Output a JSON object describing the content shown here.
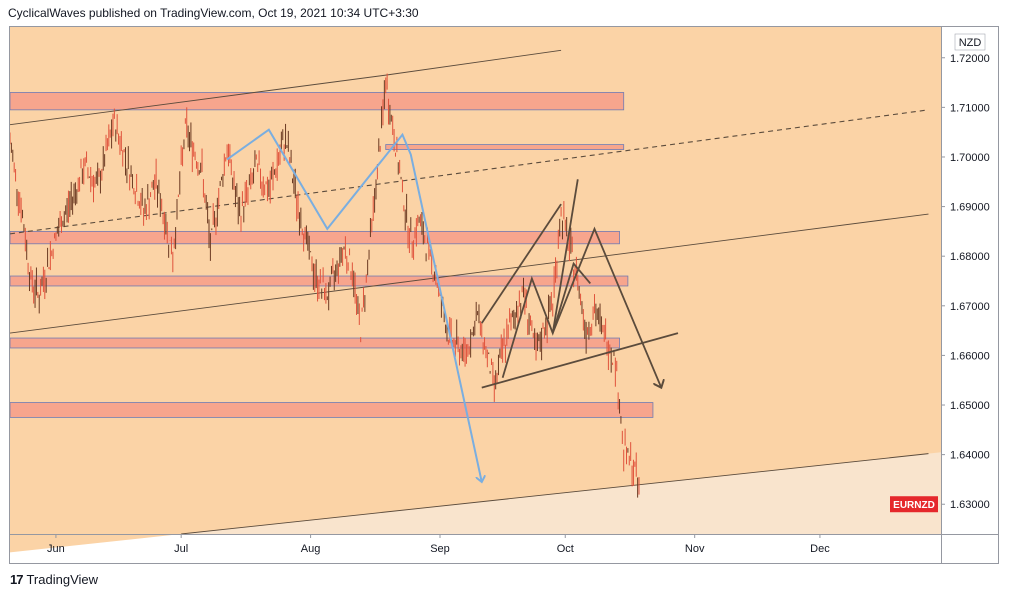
{
  "header": {
    "text": "CyclicalWaves published on TradingView.com, Oct 19, 2021 10:34 UTC+3:30"
  },
  "footer": {
    "brand": "TradingView",
    "logo_glyph": "17"
  },
  "colors": {
    "background_band": "#fbd3a6",
    "background_light": "#f9e4cd",
    "zone_fill": "#f7a58d",
    "zone_stroke": "#6f7bb3",
    "candle": "#e0533c",
    "candle_dark": "#6b3a22",
    "blue_line": "#7aaee0",
    "dark_line": "#5b4b3c",
    "badge": "#e5272b"
  },
  "chart_data": {
    "type": "line",
    "currency_label": "NZD",
    "symbol_badge": "EURNZD",
    "x_tick_labels": [
      "Jun",
      "Jul",
      "Aug",
      "Sep",
      "Oct",
      "Nov",
      "Dec"
    ],
    "y_ticks": [
      1.63,
      1.64,
      1.65,
      1.66,
      1.67,
      1.68,
      1.69,
      1.7,
      1.71,
      1.72
    ],
    "y_tick_labels": [
      "1.63000",
      "1.64000",
      "1.65000",
      "1.66000",
      "1.67000",
      "1.68000",
      "1.69000",
      "1.70000",
      "1.71000",
      "1.72000"
    ],
    "ylim": [
      1.624,
      1.7262
    ],
    "x_domain": [
      "2021-05-21",
      "2021-12-30"
    ],
    "price_series": {
      "dates": [
        "2021-05-21",
        "2021-05-24",
        "2021-05-26",
        "2021-05-28",
        "2021-06-01",
        "2021-06-04",
        "2021-06-08",
        "2021-06-11",
        "2021-06-15",
        "2021-06-18",
        "2021-06-22",
        "2021-06-25",
        "2021-06-29",
        "2021-07-02",
        "2021-07-06",
        "2021-07-08",
        "2021-07-12",
        "2021-07-15",
        "2021-07-19",
        "2021-07-22",
        "2021-07-26",
        "2021-07-29",
        "2021-08-02",
        "2021-08-05",
        "2021-08-09",
        "2021-08-11",
        "2021-08-13",
        "2021-08-17",
        "2021-08-19",
        "2021-08-23",
        "2021-08-25",
        "2021-08-27",
        "2021-08-31",
        "2021-09-03",
        "2021-09-07",
        "2021-09-10",
        "2021-09-14",
        "2021-09-17",
        "2021-09-21",
        "2021-09-24",
        "2021-09-28",
        "2021-09-30",
        "2021-10-04",
        "2021-10-06",
        "2021-10-08",
        "2021-10-12",
        "2021-10-13",
        "2021-10-14",
        "2021-10-15",
        "2021-10-18",
        "2021-10-19"
      ],
      "values": [
        1.703,
        1.688,
        1.675,
        1.672,
        1.684,
        1.69,
        1.698,
        1.694,
        1.707,
        1.699,
        1.689,
        1.695,
        1.68,
        1.706,
        1.697,
        1.682,
        1.702,
        1.688,
        1.698,
        1.693,
        1.704,
        1.69,
        1.676,
        1.672,
        1.682,
        1.677,
        1.665,
        1.697,
        1.715,
        1.693,
        1.683,
        1.687,
        1.676,
        1.664,
        1.66,
        1.668,
        1.654,
        1.664,
        1.673,
        1.66,
        1.671,
        1.689,
        1.675,
        1.665,
        1.669,
        1.661,
        1.659,
        1.65,
        1.641,
        1.636,
        1.63
      ]
    },
    "horizontal_zones": [
      {
        "start": "2021-05-21",
        "end": "2021-10-15",
        "low": 1.7095,
        "high": 1.713
      },
      {
        "start": "2021-08-19",
        "end": "2021-10-15",
        "low": 1.7015,
        "high": 1.7025
      },
      {
        "start": "2021-05-21",
        "end": "2021-10-14",
        "low": 1.6825,
        "high": 1.685
      },
      {
        "start": "2021-05-21",
        "end": "2021-10-16",
        "low": 1.674,
        "high": 1.676
      },
      {
        "start": "2021-05-21",
        "end": "2021-10-14",
        "low": 1.6615,
        "high": 1.6635
      },
      {
        "start": "2021-05-21",
        "end": "2021-10-22",
        "low": 1.6475,
        "high": 1.6505
      }
    ],
    "trend_lines": [
      {
        "style": "solid",
        "points": [
          [
            "2021-05-21",
            1.7065
          ],
          [
            "2021-08-19",
            1.7165
          ],
          [
            "2021-09-30",
            1.7215
          ]
        ]
      },
      {
        "style": "solid",
        "points": [
          [
            "2021-05-21",
            1.6645
          ],
          [
            "2021-12-27",
            1.6885
          ]
        ]
      },
      {
        "style": "solid",
        "points": [
          [
            "2021-07-01",
            1.624
          ],
          [
            "2021-12-27",
            1.6402
          ]
        ]
      },
      {
        "style": "dashed",
        "points": [
          [
            "2021-05-21",
            1.6845
          ],
          [
            "2021-12-27",
            1.7095
          ]
        ]
      }
    ],
    "blue_path": {
      "points": [
        [
          "2021-07-12",
          1.6995
        ],
        [
          "2021-07-22",
          1.7055
        ],
        [
          "2021-08-05",
          1.6855
        ],
        [
          "2021-08-23",
          1.7045
        ],
        [
          "2021-08-25",
          1.7005
        ],
        [
          "2021-09-11",
          1.6345
        ]
      ]
    },
    "dark_paths": [
      {
        "points": [
          [
            "2021-09-11",
            1.6535
          ],
          [
            "2021-10-28",
            1.6645
          ]
        ]
      },
      {
        "points": [
          [
            "2021-09-11",
            1.6665
          ],
          [
            "2021-09-30",
            1.6905
          ]
        ]
      },
      {
        "points": [
          [
            "2021-09-16",
            1.6555
          ],
          [
            "2021-09-23",
            1.6755
          ],
          [
            "2021-09-28",
            1.6645
          ],
          [
            "2021-10-03",
            1.6785
          ],
          [
            "2021-10-07",
            1.6745
          ]
        ]
      },
      {
        "points": [
          [
            "2021-09-28",
            1.6645
          ],
          [
            "2021-10-04",
            1.6955
          ]
        ]
      },
      {
        "points": [
          [
            "2021-09-28",
            1.6645
          ],
          [
            "2021-10-08",
            1.6855
          ],
          [
            "2021-10-24",
            1.6535
          ]
        ]
      }
    ]
  }
}
